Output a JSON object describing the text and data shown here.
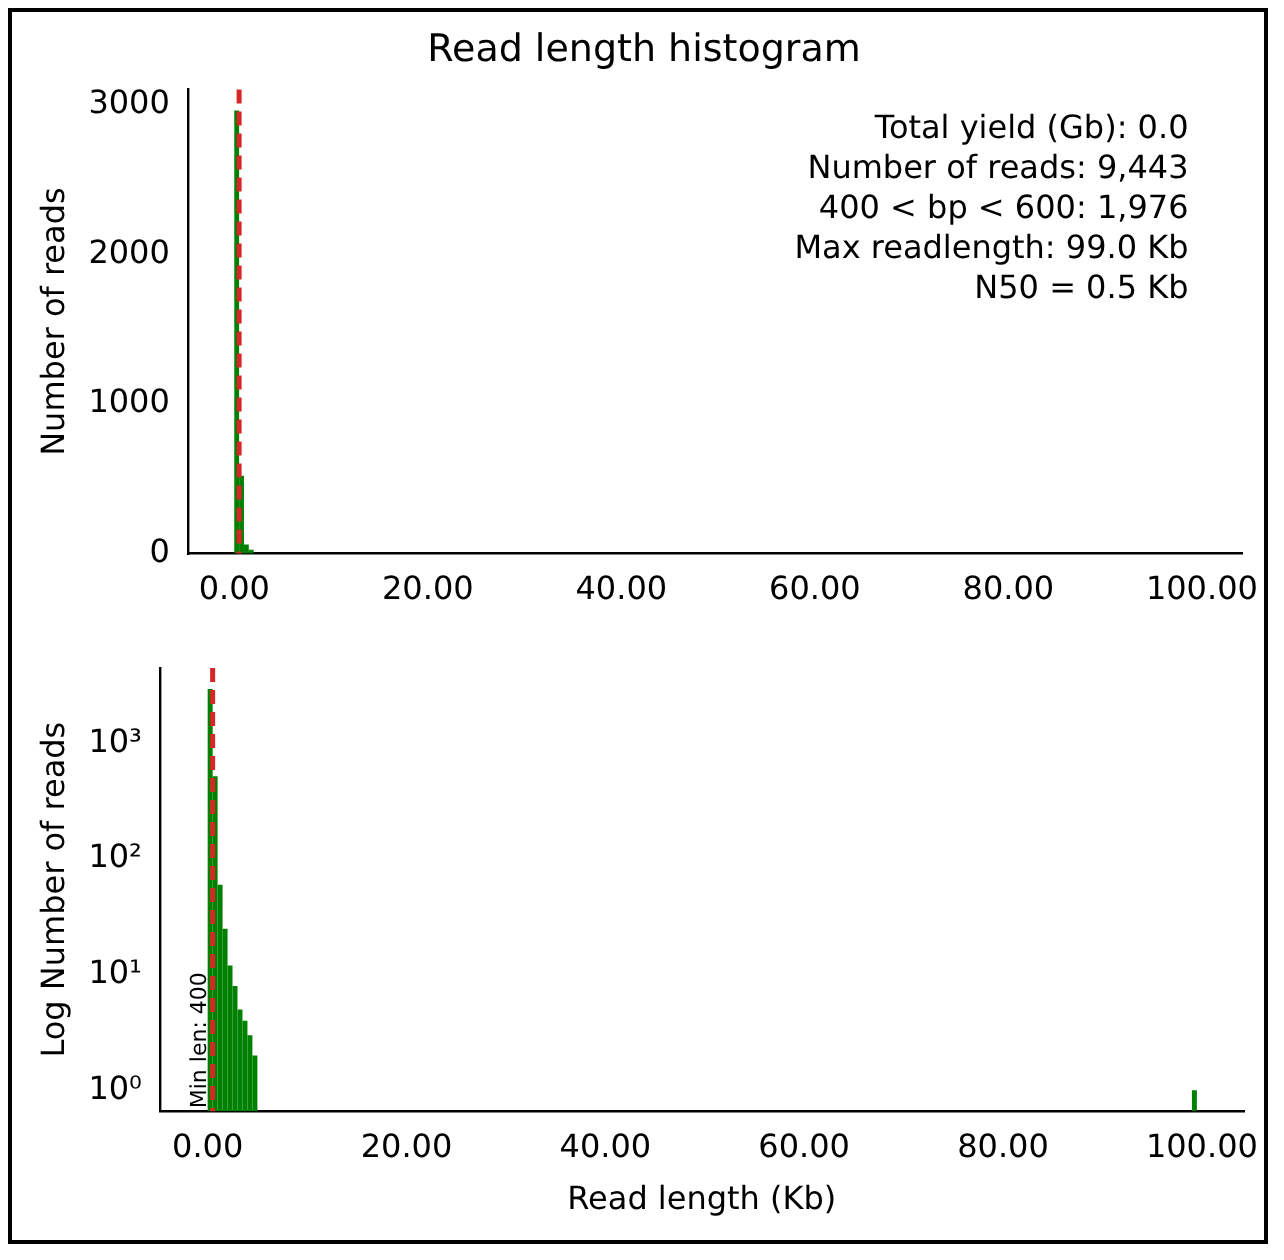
{
  "chart_data": [
    {
      "type": "histogram",
      "title": "Read length histogram",
      "ylabel": "Number of reads",
      "bins": [
        0,
        0.5,
        1,
        1.5,
        2
      ],
      "values": [
        2960,
        520,
        60,
        25
      ],
      "color": "#008000",
      "xlim": [
        -4.8,
        104.2
      ],
      "xticks": [
        {
          "value": 0,
          "label": "0.00"
        },
        {
          "value": 20,
          "label": "20.00"
        },
        {
          "value": 40,
          "label": "40.00"
        },
        {
          "value": 60,
          "label": "60.00"
        },
        {
          "value": 80,
          "label": "80.00"
        },
        {
          "value": 100,
          "label": "100.00"
        }
      ],
      "ylim": [
        0,
        3100
      ],
      "yticks": [
        0,
        1000,
        2000,
        3000
      ],
      "ref_lines": [
        {
          "axis": "x",
          "value": 0.5,
          "color": "#d62728",
          "line_style": "dashed"
        }
      ],
      "annotations": [
        "Total yield (Gb): 0.0",
        "Number of reads: 9,443",
        "400 < bp < 600: 1,976",
        "Max readlength: 99.0 Kb",
        "N50 = 0.5 Kb"
      ],
      "grid": false,
      "legend": false
    },
    {
      "type": "histogram",
      "xlabel": "Read length (Kb)",
      "ylabel": "Log Number of reads",
      "bins": [
        0,
        0.5,
        1,
        1.5,
        2,
        2.5,
        3,
        3.5,
        4,
        4.5,
        5,
        99,
        99.5
      ],
      "values": [
        2960,
        520,
        60,
        25,
        12,
        8,
        5,
        4,
        3,
        2,
        null,
        1
      ],
      "color": "#008000",
      "xlim": [
        -4.8,
        104.2
      ],
      "xticks": [
        {
          "value": 0,
          "label": "0.00"
        },
        {
          "value": 20,
          "label": "20.00"
        },
        {
          "value": 40,
          "label": "40.00"
        },
        {
          "value": 60,
          "label": "60.00"
        },
        {
          "value": 80,
          "label": "80.00"
        },
        {
          "value": 100,
          "label": "100.00"
        }
      ],
      "ylim": [
        0.66,
        4500
      ],
      "log": true,
      "yticks": [
        {
          "value": 1,
          "label": "10⁰"
        },
        {
          "value": 10,
          "label": "10¹"
        },
        {
          "value": 100,
          "label": "10²"
        },
        {
          "value": 1000,
          "label": "10³"
        }
      ],
      "ref_lines": [
        {
          "axis": "x",
          "value": 0.5,
          "color": "#d62728",
          "line_style": "dashed"
        }
      ],
      "annotations": [
        {
          "text": "Min len: 400",
          "x": 0.4,
          "y": 0.7
        }
      ],
      "grid": false,
      "legend": false
    }
  ]
}
